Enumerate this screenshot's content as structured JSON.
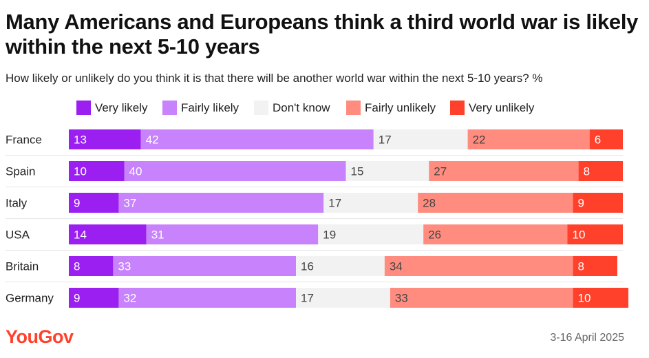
{
  "chart_data": {
    "type": "bar",
    "orientation": "horizontal",
    "stacked": true,
    "title": "Many Americans and Europeans think a third world war is likely within the next 5-10 years",
    "subtitle": "How likely or unlikely do you think it is that there will be another world war within the next 5-10 years? %",
    "categories": [
      "France",
      "Spain",
      "Italy",
      "USA",
      "Britain",
      "Germany"
    ],
    "series": [
      {
        "name": "Very likely",
        "color": "#9b1ff0",
        "label_color": "#ffffff",
        "values": [
          13,
          10,
          9,
          14,
          8,
          9
        ]
      },
      {
        "name": "Fairly likely",
        "color": "#c883fc",
        "label_color": "#ffffff",
        "values": [
          42,
          40,
          37,
          31,
          33,
          32
        ]
      },
      {
        "name": "Don't know",
        "color": "#f2f2f2",
        "label_color": "#444444",
        "values": [
          17,
          15,
          17,
          19,
          16,
          17
        ]
      },
      {
        "name": "Fairly unlikely",
        "color": "#ff8c7e",
        "label_color": "#444444",
        "values": [
          22,
          27,
          28,
          26,
          34,
          33
        ]
      },
      {
        "name": "Very unlikely",
        "color": "#ff412c",
        "label_color": "#ffffff",
        "values": [
          6,
          8,
          9,
          10,
          8,
          10
        ]
      }
    ],
    "xlim": [
      0,
      100
    ],
    "legend_position": "top"
  },
  "footer": {
    "brand": "YouGov",
    "date": "3-16 April 2025"
  }
}
